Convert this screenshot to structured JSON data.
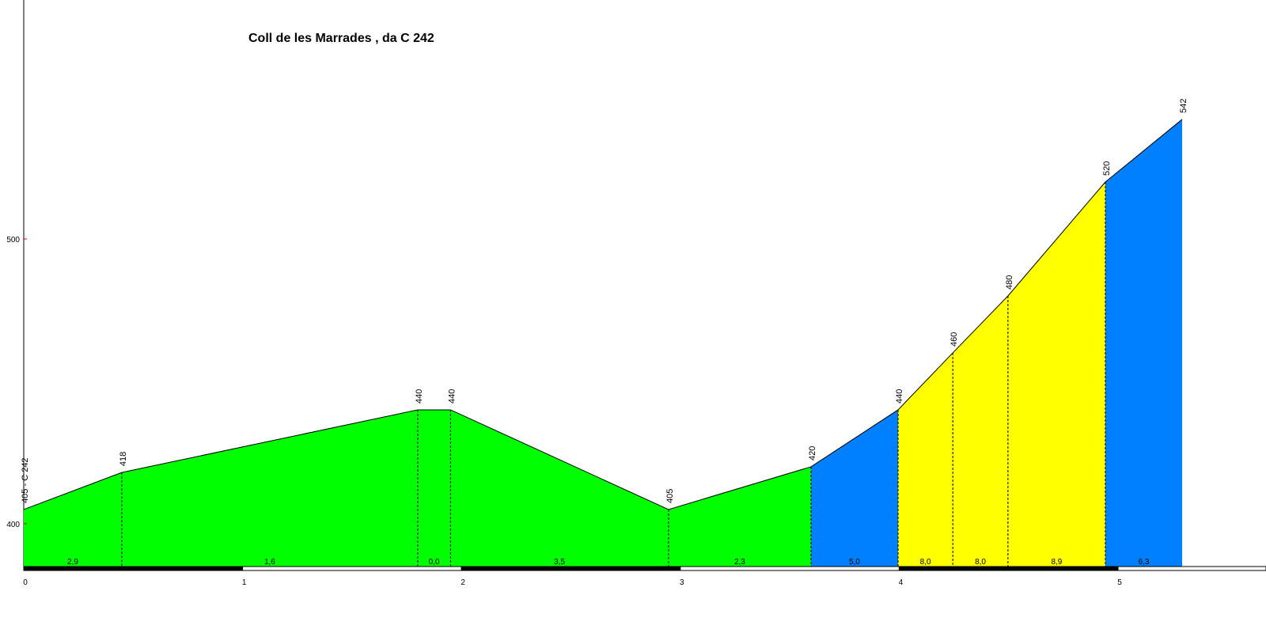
{
  "chart_data": {
    "type": "area",
    "title": "Coll de les Marrades , da C 242",
    "x": [
      0,
      0.448,
      1.8,
      1.95,
      2.946,
      3.597,
      3.995,
      4.245,
      4.497,
      4.942,
      5.293
    ],
    "values": [
      405,
      418,
      440,
      440,
      405,
      420,
      440,
      460,
      480,
      520,
      542
    ],
    "value_labels": [
      "405 - C 242",
      "418",
      "440",
      "440",
      "405",
      "420",
      "440",
      "460",
      "480",
      "520",
      "542"
    ],
    "segments": {
      "values": [
        2.9,
        1.6,
        0.0,
        3.5,
        2.3,
        5.0,
        8.0,
        8.0,
        8.9,
        6.3
      ],
      "value_labels": [
        "2,9",
        "1,6",
        "0,0",
        "3,5",
        "2,3",
        "5,0",
        "8,0",
        "8,0",
        "8,9",
        "6,3"
      ],
      "colors": [
        "#00ff00",
        "#00ff00",
        "#00ff00",
        "#00ff00",
        "#00ff00",
        "#0080ff",
        "#ffff00",
        "#ffff00",
        "#ffff00",
        "#0080ff"
      ]
    },
    "xlim": [
      0,
      5.676
    ],
    "ylim": [
      384.7,
      583.9
    ],
    "xticks": [
      0,
      1,
      2,
      3,
      4,
      5
    ],
    "yticks": [
      400,
      500
    ]
  }
}
